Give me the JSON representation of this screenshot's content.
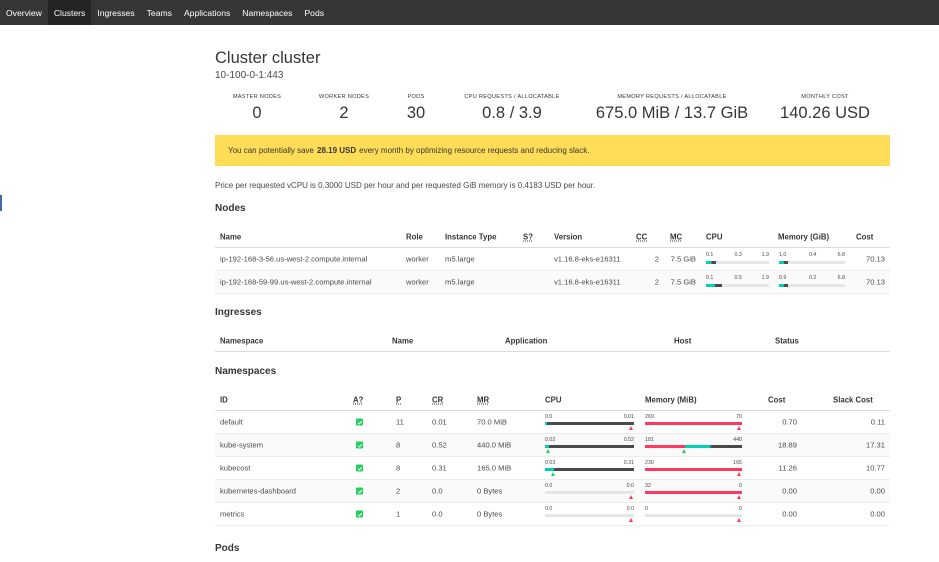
{
  "nav": [
    {
      "label": "Overview",
      "active": false
    },
    {
      "label": "Clusters",
      "active": true
    },
    {
      "label": "Ingresses",
      "active": false
    },
    {
      "label": "Teams",
      "active": false
    },
    {
      "label": "Applications",
      "active": false
    },
    {
      "label": "Namespaces",
      "active": false
    },
    {
      "label": "Pods",
      "active": false
    }
  ],
  "cluster": {
    "title": "Cluster cluster",
    "subtitle": "10-100-0-1:443"
  },
  "stats": [
    {
      "label": "MASTER NODES",
      "value": "0"
    },
    {
      "label": "WORKER NODES",
      "value": "2"
    },
    {
      "label": "PODS",
      "value": "30"
    },
    {
      "label": "CPU REQUESTS / ALLOCATABLE",
      "value": "0.8 / 3.9"
    },
    {
      "label": "MEMORY REQUESTS / ALLOCATABLE",
      "value": "675.0 MiB / 13.7 GiB"
    },
    {
      "label": "MONTHLY COST",
      "value": "140.26 USD"
    }
  ],
  "banner": {
    "before": "You can potentially save",
    "amount": "28.19 USD",
    "after": "every month by optimizing resource requests and reducing slack."
  },
  "price_text": "Price per requested vCPU is 0.3000 USD per hour and per requested GiB memory is 0.4183 USD per hour.",
  "sections": {
    "nodes": "Nodes",
    "ingresses": "Ingresses",
    "namespaces": "Namespaces",
    "pods": "Pods"
  },
  "nodes_table": {
    "headers": {
      "name": "Name",
      "role": "Role",
      "instance": "Instance Type",
      "s": "S?",
      "version": "Version",
      "cc": "CC",
      "mc": "MC",
      "cpu": "CPU",
      "memory": "Memory (GiB)",
      "cost": "Cost"
    },
    "rows": [
      {
        "name": "ip-192-168-3-56.us-west-2.compute.internal",
        "role": "worker",
        "instance": "m5.large",
        "version": "v1.16.8-eks-e16311",
        "cc": "2",
        "mc": "7.5 GiB",
        "cpu": {
          "a": "0.1",
          "b": "0.3",
          "c": "1.9",
          "fill": 0.16
        },
        "mem": {
          "a": "1.0",
          "b": "0.4",
          "c": "6.8",
          "fill": 0.14
        },
        "cost": "70.13"
      },
      {
        "name": "ip-192-168-59-99.us-west-2.compute.internal",
        "role": "worker",
        "instance": "m5.large",
        "version": "v1.16.8-eks-e16311",
        "cc": "2",
        "mc": "7.5 GiB",
        "cpu": {
          "a": "0.1",
          "b": "0.5",
          "c": "1.9",
          "fill": 0.26
        },
        "mem": {
          "a": "0.9",
          "b": "0.2",
          "c": "6.8",
          "fill": 0.13
        },
        "cost": "70.13"
      }
    ]
  },
  "ingresses_table": {
    "headers": {
      "namespace": "Namespace",
      "name": "Name",
      "application": "Application",
      "host": "Host",
      "status": "Status"
    }
  },
  "namespaces_table": {
    "headers": {
      "id": "ID",
      "a": "A?",
      "p": "P",
      "cr": "CR",
      "mr": "MR",
      "cpu": "CPU",
      "memory": "Memory (MiB)",
      "cost": "Cost",
      "slack": "Slack Cost"
    },
    "rows": [
      {
        "id": "default",
        "p": "11",
        "cr": "0.01",
        "mr": "70.0 MiB",
        "cpu": {
          "l": "0.0",
          "r": "0.01",
          "grey": 1.0,
          "teal": 0.02,
          "mark": "red",
          "mark_pos": 1.0
        },
        "mem": {
          "l": "269",
          "r": "70",
          "pink": 1.0,
          "teal": 0.0,
          "mark": "red",
          "mark_pos": 1.0
        },
        "cost": "0.70",
        "slack": "0.11"
      },
      {
        "id": "kube-system",
        "p": "8",
        "cr": "0.52",
        "mr": "440.0 MiB",
        "cpu": {
          "l": "0.02",
          "r": "0.52",
          "grey": 1.0,
          "teal": 0.04,
          "mark": "green",
          "mark_pos": 0.04
        },
        "mem": {
          "l": "181",
          "r": "440",
          "pink": 0.41,
          "teal": 0.41,
          "mark": "green",
          "mark_pos": 0.41
        },
        "cost": "18.89",
        "slack": "17.31"
      },
      {
        "id": "kubecost",
        "p": "8",
        "cr": "0.31",
        "mr": "165.0 MiB",
        "cpu": {
          "l": "0.03",
          "r": "0.31",
          "grey": 1.0,
          "teal": 0.1,
          "mark": "green",
          "mark_pos": 0.1
        },
        "mem": {
          "l": "230",
          "r": "165",
          "pink": 1.0,
          "teal": 0.0,
          "mark": "red",
          "mark_pos": 1.0
        },
        "cost": "11.26",
        "slack": "10.77"
      },
      {
        "id": "kubernetes-dashboard",
        "p": "2",
        "cr": "0.0",
        "mr": "0 Bytes",
        "cpu": {
          "l": "0.0",
          "r": "0.0",
          "grey": 0.0,
          "teal": 0.0,
          "mark": "red",
          "mark_pos": 1.0
        },
        "mem": {
          "l": "32",
          "r": "0",
          "pink": 1.0,
          "teal": 0.0,
          "mark": "red",
          "mark_pos": 1.0
        },
        "cost": "0.00",
        "slack": "0.00"
      },
      {
        "id": "metrics",
        "p": "1",
        "cr": "0.0",
        "mr": "0 Bytes",
        "cpu": {
          "l": "0.0",
          "r": "0.0",
          "grey": 0.0,
          "teal": 0.0,
          "mark": "red",
          "mark_pos": 1.0
        },
        "mem": {
          "l": "0",
          "r": "0",
          "pink": 0.0,
          "teal": 0.0,
          "mark": "red",
          "mark_pos": 1.0
        },
        "cost": "0.00",
        "slack": "0.00"
      }
    ]
  },
  "colors": {
    "nav_bg": "#363636",
    "banner": "#ffdd57",
    "teal": "#00d1b2",
    "pink": "#ff3860",
    "green": "#23d160",
    "grey_bar": "#4a4a4a"
  }
}
